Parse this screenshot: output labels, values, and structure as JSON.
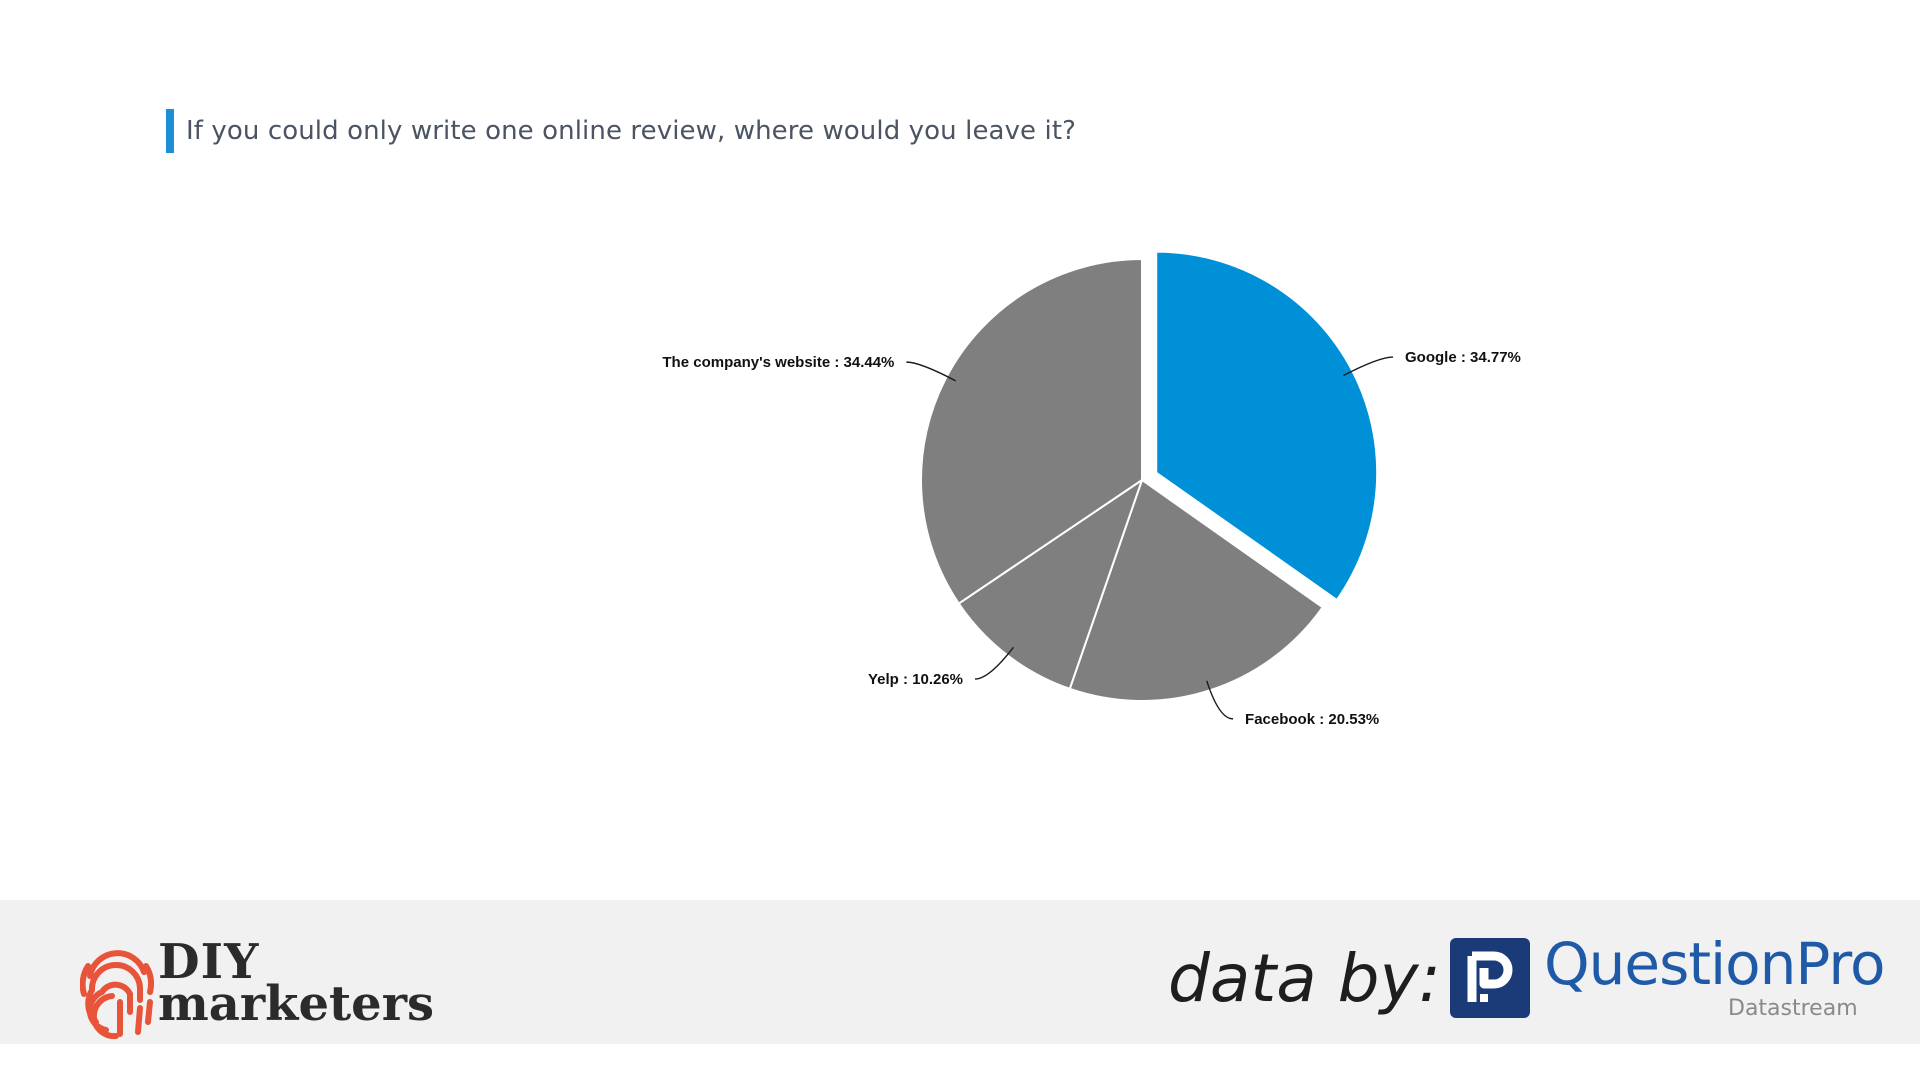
{
  "title": "If you could only write one online review, where would you leave it?",
  "chart_data": {
    "type": "pie",
    "title": "If you could only write one online review, where would you leave it?",
    "slices": [
      {
        "label": "Google",
        "value": 34.77,
        "color": "#0090d8",
        "exploded": true
      },
      {
        "label": "Facebook",
        "value": 20.53,
        "color": "#7f7f7f",
        "exploded": false
      },
      {
        "label": "Yelp",
        "value": 10.26,
        "color": "#7f7f7f",
        "exploded": false
      },
      {
        "label": "The company's website",
        "value": 34.44,
        "color": "#7f7f7f",
        "exploded": false
      }
    ],
    "unit": "%",
    "label_format": "{label} : {value}%"
  },
  "footer": {
    "diy_logo": {
      "line1": "DIY",
      "line2": "marketers"
    },
    "data_by": "data by:",
    "questionpro": {
      "name": "QuestionPro",
      "sub": "Datastream"
    }
  }
}
